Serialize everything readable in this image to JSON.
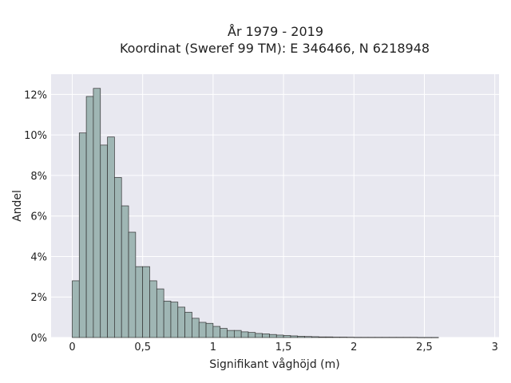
{
  "chart_data": {
    "type": "bar",
    "title": "År 1979 - 2019",
    "subtitle": "Koordinat (Sweref 99 TM): E 346466, N 6218948",
    "xlabel": "Signifikant våghöjd (m)",
    "ylabel": "Andel",
    "xlim": [
      -0.15,
      3.03
    ],
    "ylim": [
      0,
      0.13
    ],
    "x_ticks": [
      0,
      0.5,
      1,
      1.5,
      2,
      2.5,
      3
    ],
    "x_tick_labels": [
      "0",
      "0,5",
      "1",
      "1,5",
      "2",
      "2,5",
      "3"
    ],
    "y_ticks": [
      0,
      0.02,
      0.04,
      0.06,
      0.08,
      0.1,
      0.12
    ],
    "y_tick_labels": [
      "0%",
      "2%",
      "4%",
      "6%",
      "8%",
      "10%",
      "12%"
    ],
    "bin_width": 0.05,
    "bin_start": 0,
    "values": [
      0.028,
      0.101,
      0.119,
      0.123,
      0.095,
      0.099,
      0.079,
      0.065,
      0.052,
      0.035,
      0.035,
      0.028,
      0.024,
      0.018,
      0.0175,
      0.015,
      0.0125,
      0.0095,
      0.0075,
      0.007,
      0.0055,
      0.0045,
      0.0035,
      0.0035,
      0.0028,
      0.0025,
      0.002,
      0.0018,
      0.0015,
      0.0012,
      0.001,
      0.0008,
      0.0006,
      0.0005,
      0.0004,
      0.0003,
      0.0003,
      0.0002,
      0.0002,
      0.00015,
      0.0001,
      0.0001,
      0.0001,
      0.0001,
      0.0001,
      0.0001,
      0.0001,
      0.0001,
      0.0001,
      5e-05,
      5e-05,
      5e-05
    ],
    "grid": true,
    "colors": {
      "bar_fill": "#9fb6b4",
      "bar_stroke": "#333333",
      "plot_bg": "#e8e8f0",
      "grid": "#ffffff"
    }
  }
}
